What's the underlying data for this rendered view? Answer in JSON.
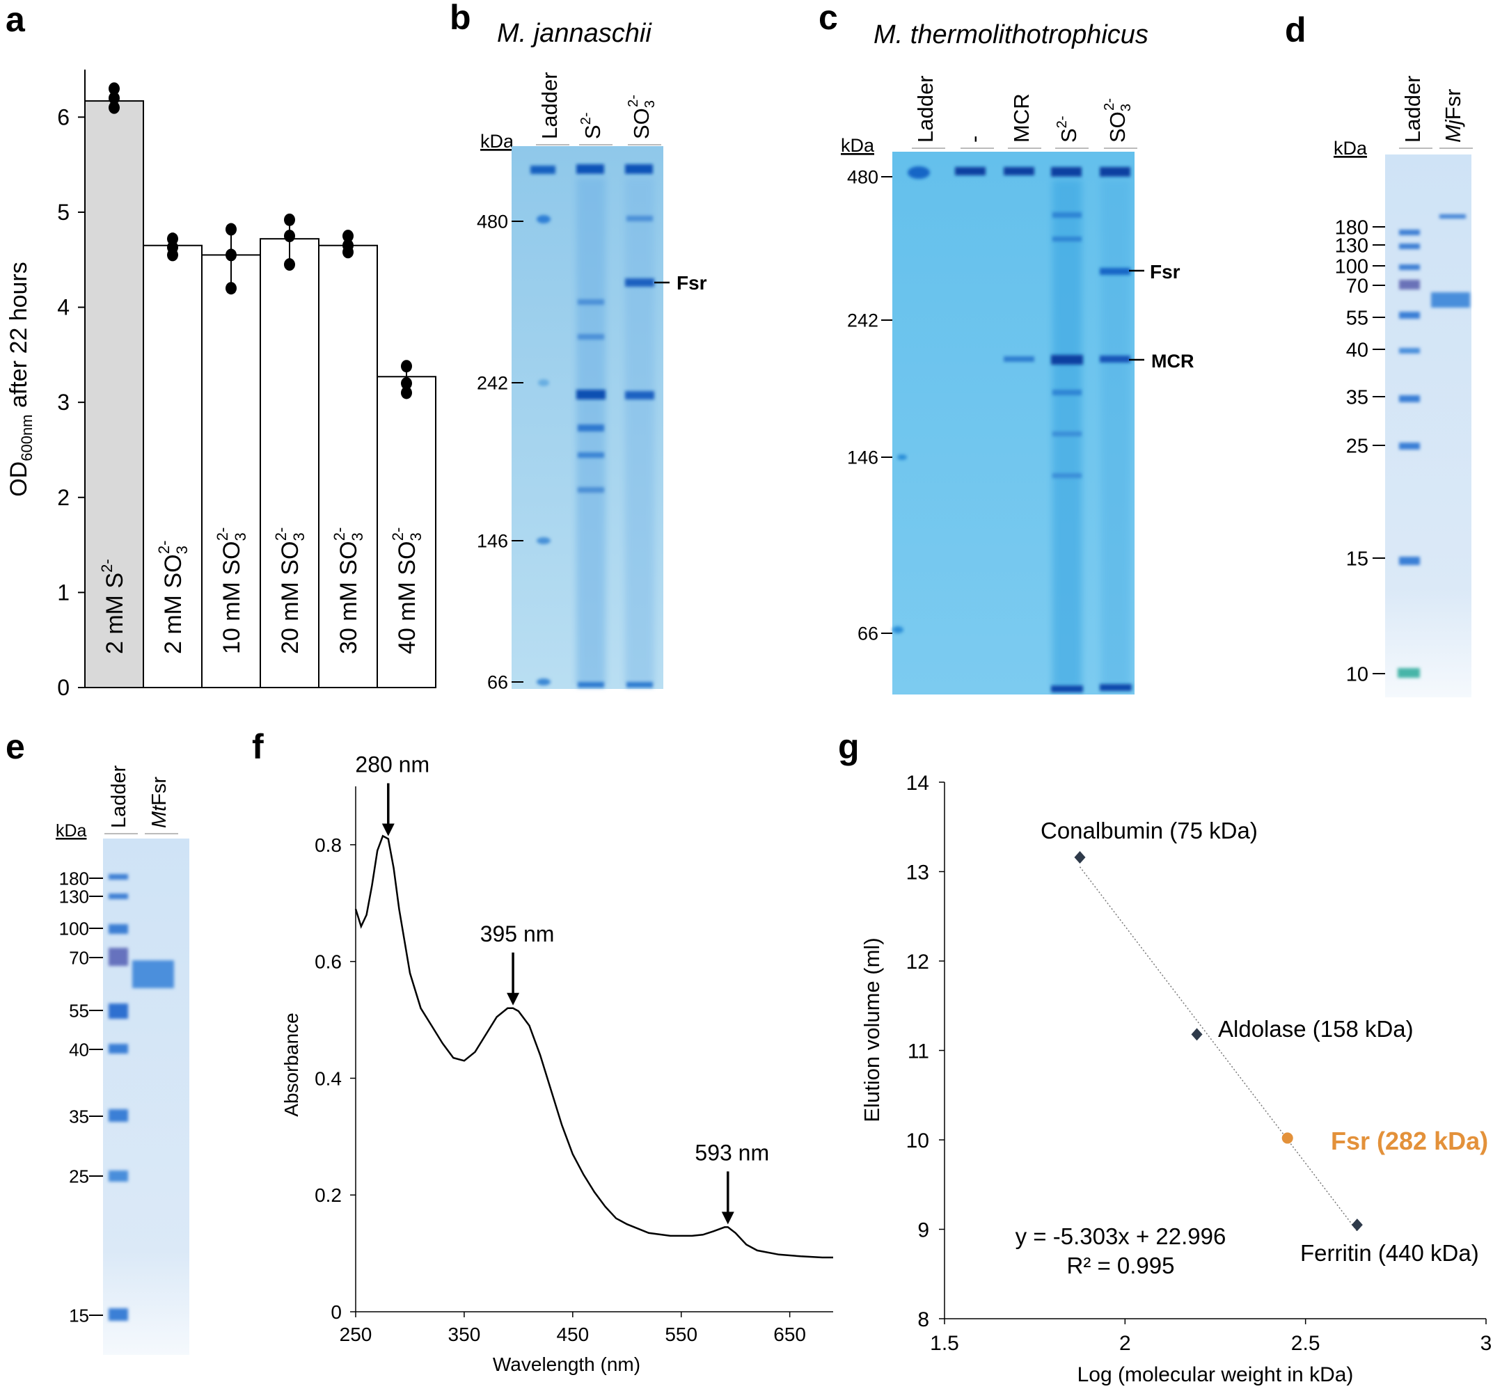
{
  "panels": {
    "a": {
      "letter": "a",
      "chart_data": {
        "type": "bar",
        "ylabel_main": "OD",
        "ylabel_sub": "600nm",
        "ylabel_rest": " after 22 hours",
        "ylim": [
          0,
          6.5
        ],
        "yticks": [
          "0",
          "1",
          "2",
          "3",
          "4",
          "5",
          "6"
        ],
        "bars": [
          {
            "prefix": "2 mM S",
            "sub": "",
            "sup": "2-",
            "value": 6.17,
            "err": [
              6.1,
              6.3
            ],
            "points": [
              6.1,
              6.2,
              6.3
            ],
            "fill": "#d9d9d9"
          },
          {
            "prefix": "2 mM SO",
            "sub": "3",
            "sup": "2-",
            "value": 4.65,
            "err": [
              4.55,
              4.72
            ],
            "points": [
              4.55,
              4.63,
              4.72
            ],
            "fill": "#ffffff"
          },
          {
            "prefix": "10 mM SO",
            "sub": "3",
            "sup": "2-",
            "value": 4.55,
            "err": [
              4.2,
              4.82
            ],
            "points": [
              4.2,
              4.55,
              4.82
            ],
            "fill": "#ffffff"
          },
          {
            "prefix": "20 mM SO",
            "sub": "3",
            "sup": "2-",
            "value": 4.72,
            "err": [
              4.45,
              4.92
            ],
            "points": [
              4.45,
              4.75,
              4.92
            ],
            "fill": "#ffffff"
          },
          {
            "prefix": "30 mM SO",
            "sub": "3",
            "sup": "2-",
            "value": 4.65,
            "err": [
              4.58,
              4.75
            ],
            "points": [
              4.58,
              4.65,
              4.75
            ],
            "fill": "#ffffff"
          },
          {
            "prefix": "40 mM SO",
            "sub": "3",
            "sup": "2-",
            "value": 3.27,
            "err": [
              3.1,
              3.38
            ],
            "points": [
              3.1,
              3.2,
              3.38
            ],
            "fill": "#ffffff"
          }
        ]
      }
    },
    "b": {
      "letter": "b",
      "title": "M. jannaschii",
      "kda": "kDa",
      "lanes": [
        {
          "text": "Ladder",
          "sup": "",
          "sub": ""
        },
        {
          "text": "S",
          "sup": "2-",
          "sub": ""
        },
        {
          "text": "SO",
          "sup": "2-",
          "sub": "3"
        }
      ],
      "markers": [
        "480",
        "242",
        "146",
        "66"
      ],
      "band_label": "Fsr"
    },
    "c": {
      "letter": "c",
      "title": "M. thermolithotrophicus",
      "kda": "kDa",
      "lanes": [
        {
          "text": "Ladder",
          "sup": "",
          "sub": ""
        },
        {
          "text": "-",
          "sup": "",
          "sub": ""
        },
        {
          "text": "MCR",
          "sup": "",
          "sub": ""
        },
        {
          "text": "S",
          "sup": "2-",
          "sub": ""
        },
        {
          "text": "SO",
          "sup": "2-",
          "sub": "3"
        }
      ],
      "markers": [
        "480",
        "242",
        "146",
        "66"
      ],
      "band_labels": [
        "Fsr",
        "MCR"
      ]
    },
    "d": {
      "letter": "d",
      "kda": "kDa",
      "lanes": [
        {
          "text": "Ladder",
          "italic": ""
        },
        {
          "italic": "Mj",
          "text": "Fsr"
        }
      ],
      "markers": [
        "180",
        "130",
        "100",
        "70",
        "55",
        "40",
        "35",
        "25",
        "15",
        "10"
      ]
    },
    "e": {
      "letter": "e",
      "kda": "kDa",
      "lanes": [
        {
          "text": "Ladder",
          "italic": ""
        },
        {
          "italic": "Mt",
          "text": "Fsr"
        }
      ],
      "markers": [
        "180",
        "130",
        "100",
        "70",
        "55",
        "40",
        "35",
        "25",
        "15"
      ]
    },
    "f": {
      "letter": "f",
      "chart_data": {
        "type": "line",
        "xlabel": "Wavelength (nm)",
        "ylabel": "Absorbance",
        "xlim": [
          250,
          690
        ],
        "ylim": [
          0,
          0.9
        ],
        "xticks": [
          "250",
          "350",
          "450",
          "550",
          "650"
        ],
        "yticks": [
          "0",
          "0.2",
          "0.4",
          "0.6",
          "0.8"
        ],
        "x": [
          250,
          255,
          260,
          265,
          270,
          275,
          280,
          285,
          290,
          300,
          310,
          320,
          330,
          340,
          350,
          360,
          370,
          380,
          390,
          395,
          400,
          410,
          420,
          430,
          440,
          450,
          460,
          470,
          480,
          490,
          500,
          520,
          540,
          560,
          570,
          580,
          590,
          593,
          600,
          610,
          620,
          640,
          660,
          680,
          690
        ],
        "y": [
          0.69,
          0.66,
          0.68,
          0.73,
          0.79,
          0.815,
          0.81,
          0.76,
          0.69,
          0.58,
          0.52,
          0.49,
          0.46,
          0.435,
          0.43,
          0.445,
          0.475,
          0.505,
          0.52,
          0.52,
          0.515,
          0.49,
          0.44,
          0.38,
          0.32,
          0.27,
          0.235,
          0.205,
          0.18,
          0.16,
          0.15,
          0.135,
          0.13,
          0.13,
          0.132,
          0.138,
          0.145,
          0.145,
          0.135,
          0.115,
          0.105,
          0.098,
          0.095,
          0.093,
          0.093
        ],
        "annotations": [
          {
            "text": "280 nm",
            "x": 280,
            "y": 0.81
          },
          {
            "text": "395 nm",
            "x": 395,
            "y": 0.52
          },
          {
            "text": "593 nm",
            "x": 593,
            "y": 0.145
          }
        ]
      }
    },
    "g": {
      "letter": "g",
      "chart_data": {
        "type": "scatter",
        "xlabel": "Log (molecular weight in kDa)",
        "ylabel": "Elution volume (ml)",
        "xlim": [
          1.5,
          3
        ],
        "ylim": [
          8,
          14
        ],
        "xticks": [
          "1.5",
          "2",
          "2.5",
          "3"
        ],
        "yticks": [
          "8",
          "9",
          "10",
          "11",
          "12",
          "13",
          "14"
        ],
        "points": [
          {
            "label": "Conalbumin (75 kDa)",
            "x": 1.875,
            "y": 13.16,
            "color": "#2e3a4a",
            "highlight": false
          },
          {
            "label": "Aldolase (158 kDa)",
            "x": 2.199,
            "y": 11.18,
            "color": "#2e3a4a",
            "highlight": false
          },
          {
            "label": "Fsr (282 kDa)",
            "x": 2.45,
            "y": 10.02,
            "color": "#e3913a",
            "highlight": true
          },
          {
            "label": "Ferritin (440 kDa)",
            "x": 2.643,
            "y": 9.05,
            "color": "#2e3a4a",
            "highlight": false
          }
        ],
        "fit": {
          "slope": -5.303,
          "intercept": 22.996,
          "equation": "y = -5.303x + 22.996",
          "r2": "R² = 0.995"
        }
      }
    }
  }
}
